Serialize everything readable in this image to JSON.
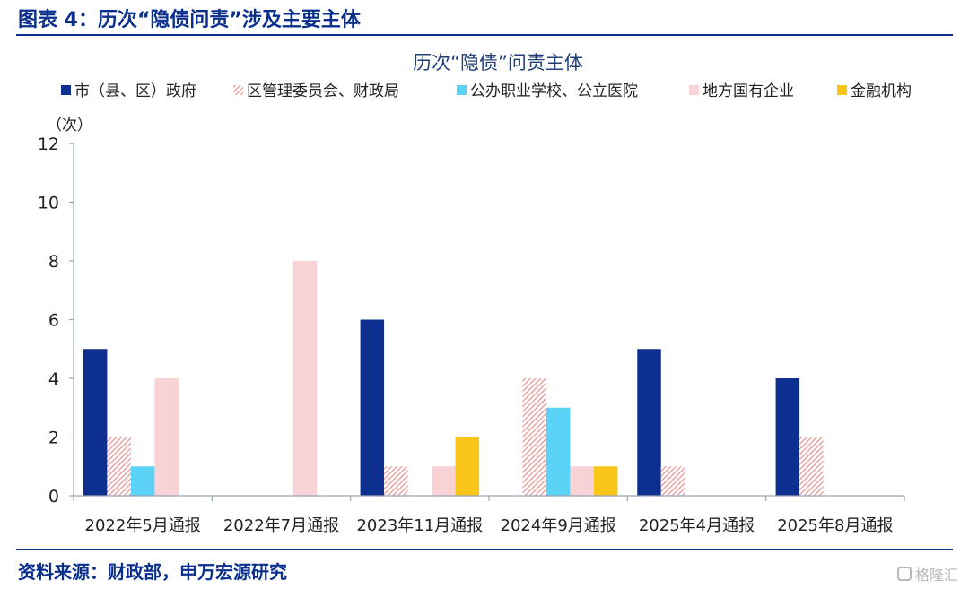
{
  "figure_title": "图表 4：历次“隐债问责”涉及主要主体",
  "source_note": "资料来源：财政部，申万宏源研究",
  "watermark": "格隆汇",
  "chart_data": {
    "type": "bar",
    "title": "历次“隐债”问责主体",
    "ylabel": "（次）",
    "xlabel": "",
    "ylim": [
      0,
      12
    ],
    "yticks": [
      0,
      2,
      4,
      6,
      8,
      10,
      12
    ],
    "grid": false,
    "legend_position": "top",
    "categories": [
      "2022年5月通报",
      "2022年7月通报",
      "2023年11月通报",
      "2024年9月通报",
      "2025年4月通报",
      "2025年8月通报"
    ],
    "series": [
      {
        "name": "市（县、区）政府",
        "color": "#0d2f8f",
        "pattern": "solid",
        "values": [
          5,
          0,
          6,
          0,
          5,
          4
        ]
      },
      {
        "name": "区管理委员会、财政局",
        "color": "#e88f8f",
        "pattern": "hatch",
        "values": [
          2,
          0,
          1,
          4,
          1,
          2
        ]
      },
      {
        "name": "公办职业学校、公立医院",
        "color": "#5bd3f7",
        "pattern": "solid",
        "values": [
          1,
          0,
          0,
          3,
          0,
          0
        ]
      },
      {
        "name": "地方国有企业",
        "color": "#f8d2d4",
        "pattern": "solid",
        "values": [
          4,
          8,
          1,
          1,
          0,
          0
        ]
      },
      {
        "name": "金融机构",
        "color": "#f9c519",
        "pattern": "solid",
        "values": [
          0,
          0,
          2,
          1,
          0,
          0
        ]
      }
    ]
  }
}
